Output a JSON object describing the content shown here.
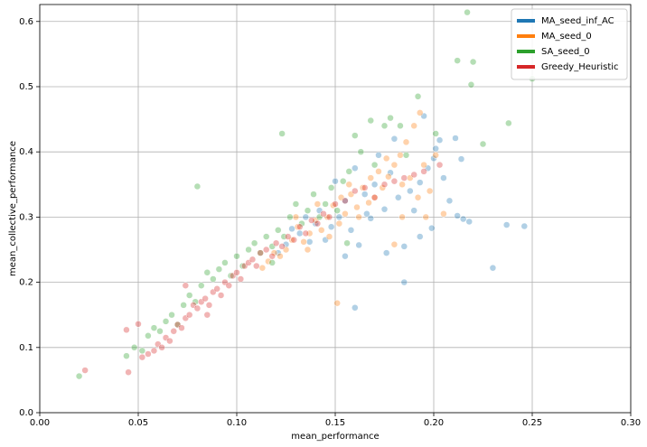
{
  "chart_data": {
    "type": "scatter",
    "xlabel": "mean_performance",
    "ylabel": "mean_collective_performance",
    "xlim": [
      0,
      0.3
    ],
    "ylim": [
      0,
      0.626
    ],
    "xticks": [
      {
        "value": 0,
        "label": "0.00"
      },
      {
        "value": 0.05,
        "label": "0.05"
      },
      {
        "value": 0.1,
        "label": "0.10"
      },
      {
        "value": 0.15,
        "label": "0.15"
      },
      {
        "value": 0.2,
        "label": "0.20"
      },
      {
        "value": 0.25,
        "label": "0.25"
      },
      {
        "value": 0.3,
        "label": "0.30"
      }
    ],
    "yticks": [
      {
        "value": 0,
        "label": "0.0"
      },
      {
        "value": 0.1,
        "label": "0.1"
      },
      {
        "value": 0.2,
        "label": "0.2"
      },
      {
        "value": 0.3,
        "label": "0.3"
      },
      {
        "value": 0.4,
        "label": "0.4"
      },
      {
        "value": 0.5,
        "label": "0.5"
      },
      {
        "value": 0.6,
        "label": "0.6"
      }
    ],
    "grid": true,
    "legend": "upper right",
    "series": [
      {
        "name": "MA_seed_inf_AC",
        "color": "#1f77b4",
        "x": [
          0.246,
          0.237,
          0.23,
          0.185,
          0.16,
          0.211,
          0.215,
          0.218,
          0.212,
          0.2,
          0.195,
          0.203,
          0.201,
          0.197,
          0.193,
          0.188,
          0.182,
          0.178,
          0.175,
          0.17,
          0.168,
          0.165,
          0.162,
          0.158,
          0.155,
          0.152,
          0.148,
          0.145,
          0.142,
          0.14,
          0.137,
          0.135,
          0.132,
          0.128,
          0.125,
          0.121,
          0.185,
          0.19,
          0.205,
          0.208,
          0.172,
          0.18,
          0.16,
          0.155,
          0.199,
          0.214,
          0.15,
          0.166,
          0.176,
          0.193
        ],
        "values": [
          0.286,
          0.288,
          0.222,
          0.2,
          0.161,
          0.421,
          0.297,
          0.293,
          0.302,
          0.39,
          0.455,
          0.418,
          0.405,
          0.375,
          0.353,
          0.34,
          0.33,
          0.368,
          0.312,
          0.35,
          0.298,
          0.335,
          0.257,
          0.28,
          0.325,
          0.3,
          0.285,
          0.265,
          0.31,
          0.29,
          0.262,
          0.3,
          0.275,
          0.282,
          0.258,
          0.245,
          0.255,
          0.31,
          0.36,
          0.325,
          0.395,
          0.42,
          0.375,
          0.24,
          0.283,
          0.389,
          0.355,
          0.305,
          0.245,
          0.27
        ]
      },
      {
        "name": "MA_seed_0",
        "color": "#ff7f0e",
        "x": [
          0.193,
          0.151,
          0.205,
          0.19,
          0.186,
          0.183,
          0.18,
          0.177,
          0.174,
          0.17,
          0.167,
          0.164,
          0.161,
          0.158,
          0.155,
          0.152,
          0.149,
          0.146,
          0.143,
          0.14,
          0.137,
          0.134,
          0.131,
          0.128,
          0.125,
          0.122,
          0.119,
          0.116,
          0.113,
          0.188,
          0.195,
          0.198,
          0.201,
          0.184,
          0.18,
          0.176,
          0.172,
          0.168,
          0.162,
          0.157,
          0.153,
          0.147,
          0.141,
          0.136,
          0.13,
          0.192,
          0.196,
          0.184
        ],
        "values": [
          0.46,
          0.168,
          0.305,
          0.44,
          0.415,
          0.395,
          0.38,
          0.362,
          0.345,
          0.33,
          0.322,
          0.345,
          0.315,
          0.335,
          0.305,
          0.29,
          0.318,
          0.3,
          0.28,
          0.295,
          0.275,
          0.262,
          0.285,
          0.265,
          0.25,
          0.24,
          0.245,
          0.232,
          0.222,
          0.36,
          0.38,
          0.34,
          0.395,
          0.3,
          0.258,
          0.39,
          0.37,
          0.36,
          0.3,
          0.35,
          0.33,
          0.27,
          0.32,
          0.25,
          0.3,
          0.33,
          0.3,
          0.35
        ]
      },
      {
        "name": "SA_seed_0",
        "color": "#2ca02c",
        "x": [
          0.217,
          0.212,
          0.22,
          0.219,
          0.25,
          0.238,
          0.225,
          0.123,
          0.08,
          0.02,
          0.044,
          0.048,
          0.052,
          0.055,
          0.058,
          0.061,
          0.064,
          0.067,
          0.07,
          0.073,
          0.076,
          0.079,
          0.082,
          0.085,
          0.088,
          0.091,
          0.094,
          0.097,
          0.1,
          0.103,
          0.106,
          0.109,
          0.112,
          0.115,
          0.118,
          0.121,
          0.124,
          0.127,
          0.13,
          0.133,
          0.136,
          0.139,
          0.142,
          0.145,
          0.148,
          0.151,
          0.154,
          0.157,
          0.16,
          0.163,
          0.168,
          0.175,
          0.178,
          0.183,
          0.192,
          0.201,
          0.17,
          0.186,
          0.156,
          0.118
        ],
        "values": [
          0.614,
          0.54,
          0.538,
          0.503,
          0.512,
          0.444,
          0.412,
          0.428,
          0.347,
          0.056,
          0.087,
          0.1,
          0.095,
          0.118,
          0.13,
          0.125,
          0.14,
          0.15,
          0.135,
          0.165,
          0.18,
          0.17,
          0.195,
          0.215,
          0.205,
          0.22,
          0.23,
          0.21,
          0.24,
          0.225,
          0.25,
          0.26,
          0.245,
          0.27,
          0.255,
          0.28,
          0.27,
          0.3,
          0.32,
          0.29,
          0.31,
          0.335,
          0.3,
          0.32,
          0.345,
          0.31,
          0.355,
          0.37,
          0.425,
          0.4,
          0.448,
          0.44,
          0.452,
          0.44,
          0.485,
          0.428,
          0.38,
          0.395,
          0.26,
          0.23
        ]
      },
      {
        "name": "Greedy_Heuristic",
        "color": "#d62728",
        "x": [
          0.023,
          0.045,
          0.044,
          0.05,
          0.052,
          0.055,
          0.058,
          0.06,
          0.062,
          0.064,
          0.066,
          0.068,
          0.07,
          0.072,
          0.074,
          0.076,
          0.078,
          0.08,
          0.082,
          0.084,
          0.086,
          0.088,
          0.09,
          0.092,
          0.094,
          0.096,
          0.098,
          0.1,
          0.102,
          0.104,
          0.106,
          0.108,
          0.11,
          0.112,
          0.115,
          0.118,
          0.12,
          0.123,
          0.126,
          0.129,
          0.132,
          0.135,
          0.138,
          0.141,
          0.144,
          0.147,
          0.15,
          0.155,
          0.16,
          0.165,
          0.17,
          0.175,
          0.18,
          0.185,
          0.19,
          0.195,
          0.203,
          0.074,
          0.085
        ],
        "values": [
          0.065,
          0.062,
          0.127,
          0.136,
          0.085,
          0.09,
          0.095,
          0.105,
          0.1,
          0.115,
          0.11,
          0.125,
          0.135,
          0.13,
          0.145,
          0.15,
          0.165,
          0.16,
          0.17,
          0.175,
          0.165,
          0.185,
          0.19,
          0.18,
          0.2,
          0.195,
          0.21,
          0.215,
          0.205,
          0.225,
          0.23,
          0.235,
          0.225,
          0.245,
          0.25,
          0.24,
          0.26,
          0.255,
          0.27,
          0.265,
          0.285,
          0.275,
          0.295,
          0.29,
          0.305,
          0.3,
          0.32,
          0.325,
          0.34,
          0.345,
          0.33,
          0.35,
          0.355,
          0.36,
          0.365,
          0.37,
          0.38,
          0.195,
          0.15
        ]
      }
    ]
  }
}
